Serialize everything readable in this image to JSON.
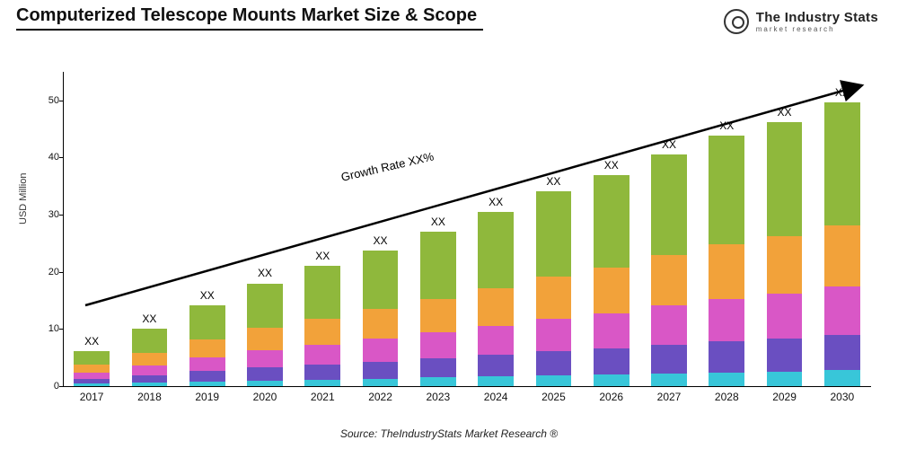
{
  "title": "Computerized Telescope Mounts Market Size & Scope",
  "logo": {
    "main": "The Industry Stats",
    "sub": "market research"
  },
  "chart": {
    "type": "stacked-bar",
    "y_label": "USD Million",
    "ylim": [
      0,
      55
    ],
    "y_ticks": [
      0,
      10,
      20,
      30,
      40,
      50
    ],
    "categories": [
      "2017",
      "2018",
      "2019",
      "2020",
      "2021",
      "2022",
      "2023",
      "2024",
      "2025",
      "2026",
      "2027",
      "2028",
      "2029",
      "2030"
    ],
    "bar_labels": [
      "XX",
      "XX",
      "XX",
      "XX",
      "XX",
      "XX",
      "XX",
      "XX",
      "XX",
      "XX",
      "XX",
      "XX",
      "XX",
      "XX"
    ],
    "series_colors": [
      "#38c6d9",
      "#6a4fc1",
      "#d957c6",
      "#f2a23a",
      "#8fb83c"
    ],
    "stacks": [
      [
        0.4,
        0.9,
        1.1,
        1.3,
        2.5
      ],
      [
        0.6,
        1.3,
        1.7,
        2.2,
        4.2
      ],
      [
        0.8,
        1.8,
        2.4,
        3.1,
        6.0
      ],
      [
        1.0,
        2.3,
        3.0,
        3.9,
        7.8
      ],
      [
        1.1,
        2.6,
        3.5,
        4.6,
        9.3
      ],
      [
        1.3,
        3.0,
        4.0,
        5.2,
        10.2
      ],
      [
        1.5,
        3.4,
        4.5,
        5.9,
        11.8
      ],
      [
        1.7,
        3.8,
        5.1,
        6.6,
        13.3
      ],
      [
        1.85,
        4.25,
        5.7,
        7.4,
        14.9
      ],
      [
        2.0,
        4.6,
        6.2,
        8.0,
        16.1
      ],
      [
        2.2,
        5.1,
        6.8,
        8.8,
        17.7
      ],
      [
        2.4,
        5.5,
        7.4,
        9.5,
        19.1
      ],
      [
        2.55,
        5.8,
        7.85,
        10.1,
        19.9
      ],
      [
        2.8,
        6.2,
        8.4,
        10.8,
        21.4
      ]
    ],
    "bar_width_ratio": 0.62,
    "background_color": "#ffffff",
    "axis_color": "#000000",
    "tick_fontsize": 12,
    "label_fontsize": 11,
    "growth_arrow": {
      "label": "Growth Rate XX%",
      "color": "#000000"
    }
  },
  "source": "Source: TheIndustryStats Market Research ®"
}
